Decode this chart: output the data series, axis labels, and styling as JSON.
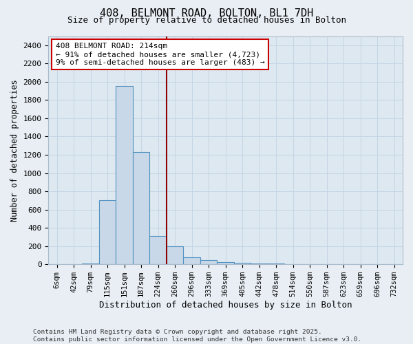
{
  "title1": "408, BELMONT ROAD, BOLTON, BL1 7DH",
  "title2": "Size of property relative to detached houses in Bolton",
  "xlabel": "Distribution of detached houses by size in Bolton",
  "ylabel": "Number of detached properties",
  "categories": [
    "6sqm",
    "42sqm",
    "79sqm",
    "115sqm",
    "151sqm",
    "187sqm",
    "224sqm",
    "260sqm",
    "296sqm",
    "333sqm",
    "369sqm",
    "405sqm",
    "442sqm",
    "478sqm",
    "514sqm",
    "550sqm",
    "587sqm",
    "623sqm",
    "659sqm",
    "696sqm",
    "732sqm"
  ],
  "values": [
    0,
    0,
    10,
    700,
    1950,
    1230,
    310,
    200,
    80,
    50,
    25,
    20,
    10,
    10,
    5,
    5,
    3,
    0,
    0,
    0,
    0
  ],
  "bar_color": "#c8d8e8",
  "bar_edge_color": "#5090c0",
  "red_line_x": 6.5,
  "annotation_text": "408 BELMONT ROAD: 214sqm\n← 91% of detached houses are smaller (4,723)\n9% of semi-detached houses are larger (483) →",
  "ylim": [
    0,
    2500
  ],
  "yticks": [
    0,
    200,
    400,
    600,
    800,
    1000,
    1200,
    1400,
    1600,
    1800,
    2000,
    2200,
    2400
  ],
  "grid_color": "#c5d5e5",
  "plot_bg": "#dde8f0",
  "fig_bg": "#e8eef4",
  "footer": "Contains HM Land Registry data © Crown copyright and database right 2025.\nContains public sector information licensed under the Open Government Licence v3.0."
}
